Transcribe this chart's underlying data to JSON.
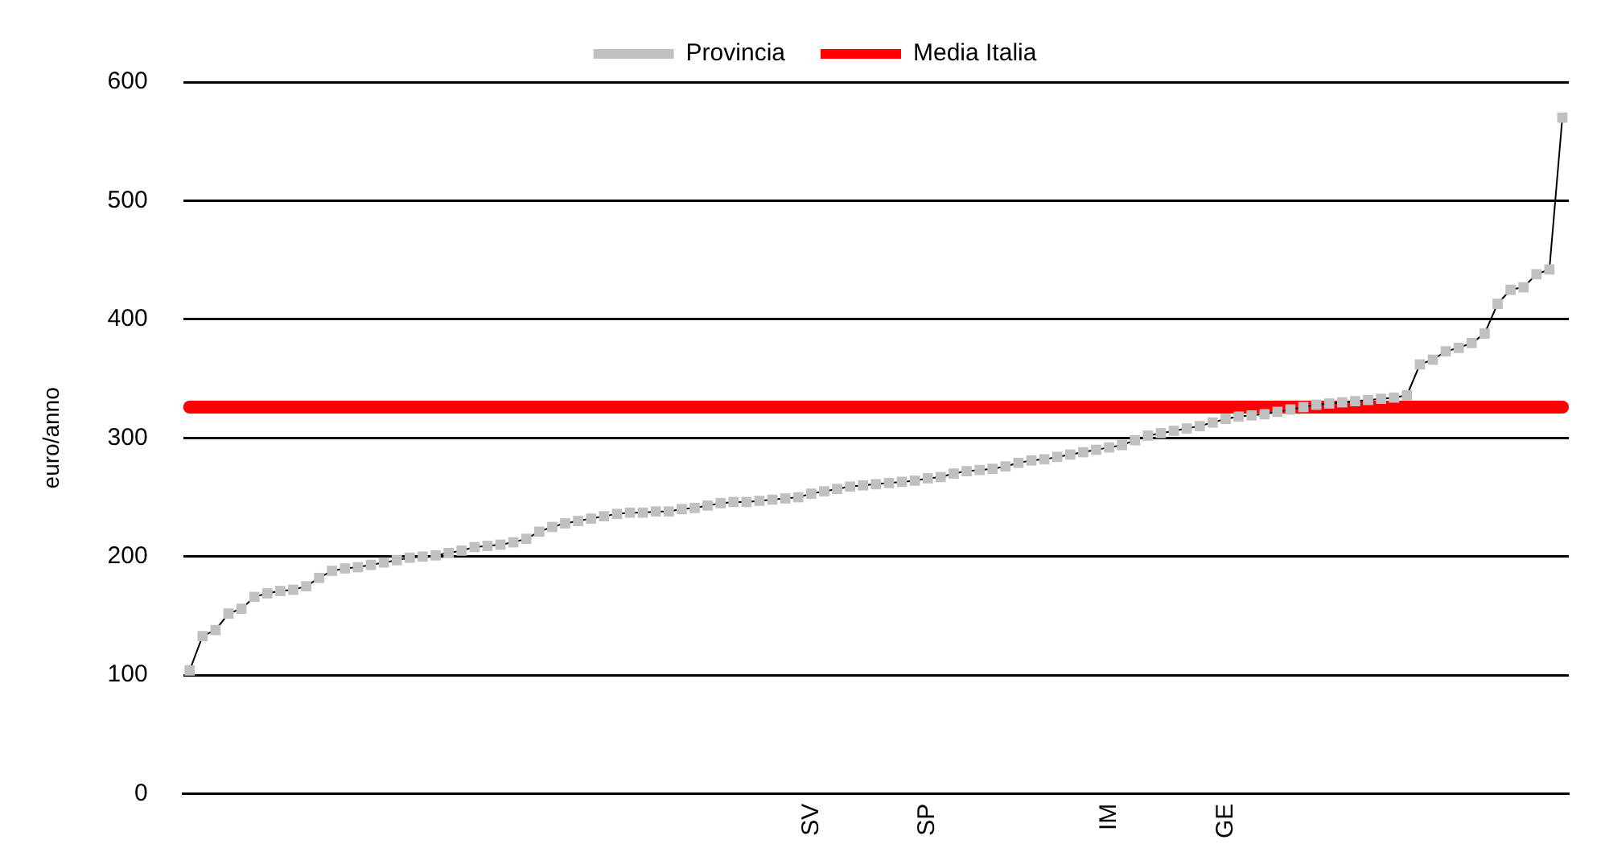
{
  "chart_data": {
    "type": "line",
    "ylabel": "euro/anno",
    "categories": [
      null,
      null,
      null,
      null,
      null,
      null,
      null,
      null,
      null,
      null,
      null,
      null,
      null,
      null,
      null,
      null,
      null,
      null,
      null,
      null,
      null,
      null,
      null,
      null,
      null,
      null,
      null,
      null,
      null,
      null,
      null,
      null,
      null,
      null,
      null,
      null,
      null,
      null,
      null,
      null,
      null,
      null,
      null,
      null,
      null,
      null,
      null,
      null,
      "SV",
      null,
      null,
      null,
      null,
      null,
      null,
      null,
      null,
      "SP",
      null,
      null,
      null,
      null,
      null,
      null,
      null,
      null,
      null,
      null,
      null,
      null,
      null,
      "IM",
      null,
      null,
      null,
      null,
      null,
      null,
      null,
      null,
      "GE",
      null,
      null,
      null,
      null,
      null,
      null,
      null,
      null,
      null,
      null,
      null,
      null,
      null,
      null,
      null,
      null,
      null,
      null,
      null,
      null,
      null,
      null,
      null,
      null,
      null,
      null
    ],
    "series": [
      {
        "name": "Provincia",
        "color": "#c0c0c0",
        "values": [
          104,
          133,
          138,
          152,
          156,
          166,
          169,
          171,
          172,
          175,
          182,
          188,
          190,
          191,
          193,
          195,
          197,
          199,
          200,
          201,
          203,
          205,
          208,
          209,
          210,
          212,
          215,
          221,
          225,
          228,
          230,
          232,
          234,
          236,
          237,
          237,
          238,
          238,
          240,
          241,
          243,
          245,
          246,
          246,
          247,
          248,
          249,
          250,
          253,
          255,
          257,
          259,
          260,
          261,
          262,
          263,
          264,
          266,
          267,
          270,
          272,
          273,
          274,
          276,
          279,
          281,
          282,
          284,
          286,
          288,
          290,
          292,
          294,
          298,
          302,
          304,
          306,
          308,
          310,
          313,
          316,
          318,
          319,
          320,
          322,
          324,
          326,
          328,
          329,
          330,
          331,
          332,
          333,
          334,
          336,
          362,
          366,
          373,
          376,
          380,
          388,
          413,
          425,
          427,
          438,
          442,
          570
        ]
      }
    ],
    "ref_lines": [
      {
        "axis": "y",
        "value": 326,
        "label": "Media Italia",
        "color": "#ff0000"
      }
    ],
    "ylim": [
      0,
      600
    ],
    "yticks": [
      0,
      100,
      200,
      300,
      400,
      500,
      600
    ],
    "grid": "y",
    "legend": "top",
    "marker": "square",
    "line_style": "solid"
  }
}
